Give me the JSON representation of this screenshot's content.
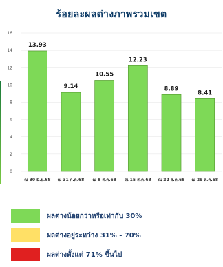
{
  "chart_data": {
    "type": "bar",
    "title": "ร้อยละผลต่างภาพรวมเขต",
    "categories": [
      "ณ 30 มิ.ย.68",
      "ณ 31 ก.ค.68",
      "ณ 8 ส.ค.68",
      "ณ 15 ส.ค.68",
      "ณ 22 ส.ค.68",
      "ณ 29 ส.ค.68"
    ],
    "values": [
      13.93,
      9.14,
      10.55,
      12.23,
      8.89,
      8.41
    ],
    "data_labels": [
      "13.93",
      "9.14",
      "10.55",
      "12.23",
      "8.89",
      "8.41"
    ],
    "ylim": [
      0,
      16
    ],
    "yticks": [
      "0",
      "2",
      "4",
      "6",
      "8",
      "10",
      "12",
      "14",
      "16"
    ],
    "grid": true,
    "bar_color": "#7ed957",
    "bar_edge_color": "#5a9e35",
    "grid_color": "#e3e3e3",
    "title_color": "#0d3b66"
  },
  "legend": {
    "items": [
      {
        "label": "ผลต่างน้อยกว่าหรือเท่ากับ 30%",
        "color": "#7ed957"
      },
      {
        "label": "ผลต่างอยู่ระหว่าง 31% - 70%",
        "color": "#ffe066"
      },
      {
        "label": "ผลต่างตั้งแต่ 71% ขึ้นไป",
        "color": "#e02020"
      }
    ]
  }
}
